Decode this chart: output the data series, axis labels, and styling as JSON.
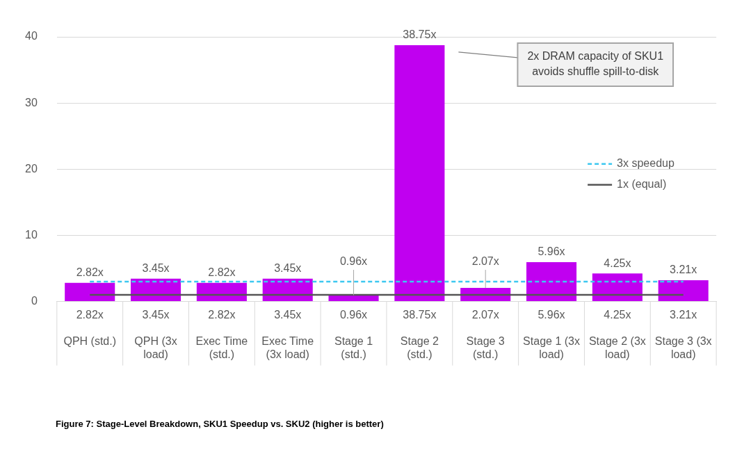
{
  "chart_data": {
    "type": "bar",
    "title": "Figure 7: Stage-Level Breakdown, SKU1 Speedup vs. SKU2 (higher is better)",
    "categories": [
      "QPH (std.)",
      "QPH (3x load)",
      "Exec Time (std.)",
      "Exec Time (3x load)",
      "Stage 1 (std.)",
      "Stage 2 (std.)",
      "Stage 3 (std.)",
      "Stage 1 (3x load)",
      "Stage 2 (3x load)",
      "Stage 3 (3x load)"
    ],
    "series": [
      {
        "color": "#c000f0",
        "values": [
          2.82,
          3.45,
          2.82,
          3.45,
          0.96,
          38.75,
          2.07,
          5.96,
          4.25,
          3.21
        ],
        "value_labels": [
          "2.82x",
          "3.45x",
          "2.82x",
          "3.45x",
          "0.96x",
          "38.75x",
          "2.07x",
          "5.96x",
          "4.25x",
          "3.21x"
        ]
      },
      {
        "type": "line",
        "name": "3x speedup",
        "color": "#3cc8f0",
        "line_style": "dashed",
        "values": [
          3,
          3,
          3,
          3,
          3,
          3,
          3,
          3,
          3,
          3
        ]
      },
      {
        "type": "line",
        "name": "1x (equal)",
        "color": "#555555",
        "line_style": "solid",
        "values": [
          1,
          1,
          1,
          1,
          1,
          1,
          1,
          1,
          1,
          1
        ]
      }
    ],
    "ylim": [
      0,
      40
    ],
    "yticks": [
      0,
      10,
      20,
      30,
      40
    ],
    "grid": "y",
    "legend": "right",
    "marker": "none",
    "annotations": [
      "2x DRAM capacity of SKU1\navoids shuffle spill-to-disk"
    ]
  }
}
